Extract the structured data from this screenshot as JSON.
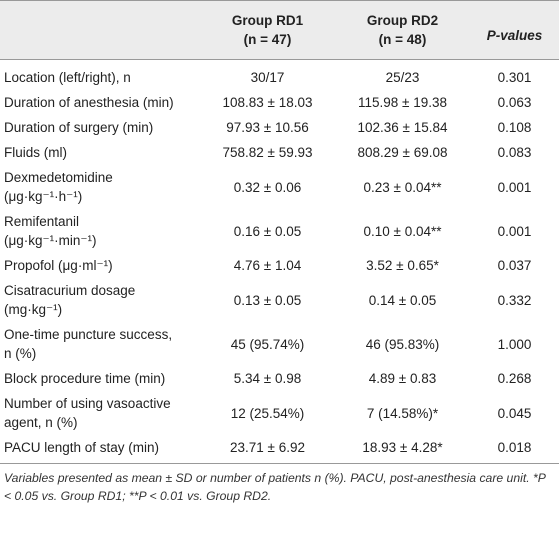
{
  "table": {
    "header": [
      "Group RD1",
      "Group RD2",
      "P-values"
    ],
    "subheader": [
      "(n = 47)",
      "(n = 48)"
    ],
    "rows": [
      [
        [
          "Location (left/right), n"
        ],
        "30/17",
        "25/23",
        "0.301"
      ],
      [
        [
          "Duration of anesthesia (min)"
        ],
        "108.83 ± 18.03",
        "115.98 ± 19.38",
        "0.063"
      ],
      [
        [
          "Duration of surgery (min)"
        ],
        "97.93 ± 10.56",
        "102.36 ± 15.84",
        "0.108"
      ],
      [
        [
          "Fluids (ml)"
        ],
        "758.82 ± 59.93",
        "808.29 ± 69.08",
        "0.083"
      ],
      [
        [
          "Dexmedetomidine",
          "(μg·kg⁻¹·h⁻¹)"
        ],
        "0.32 ± 0.06",
        "0.23 ± 0.04**",
        "0.001"
      ],
      [
        [
          "Remifentanil",
          "(μg·kg⁻¹·min⁻¹)"
        ],
        "0.16 ± 0.05",
        "0.10 ± 0.04**",
        "0.001"
      ],
      [
        [
          "Propofol (μg·ml⁻¹)"
        ],
        "4.76 ± 1.04",
        "3.52 ± 0.65*",
        "0.037"
      ],
      [
        [
          "Cisatracurium dosage",
          "(mg·kg⁻¹)"
        ],
        "0.13 ± 0.05",
        "0.14 ± 0.05",
        "0.332"
      ],
      [
        [
          "One-time puncture success,",
          "n (%)"
        ],
        "45 (95.74%)",
        "46 (95.83%)",
        "1.000"
      ],
      [
        [
          "Block procedure time (min)"
        ],
        "5.34 ± 0.98",
        "4.89 ± 0.83",
        "0.268"
      ],
      [
        [
          "Number of using vasoactive",
          "agent, n (%)"
        ],
        "12 (25.54%)",
        "7 (14.58%)*",
        "0.045"
      ],
      [
        [
          "PACU length of stay (min)"
        ],
        "23.71 ± 6.92",
        "18.93 ± 4.28*",
        "0.018"
      ]
    ],
    "footnote": "Variables presented as mean ± SD or number of patients n (%). PACU, post-anesthesia care unit. *P < 0.05 vs. Group RD1; **P < 0.01 vs. Group RD2."
  }
}
